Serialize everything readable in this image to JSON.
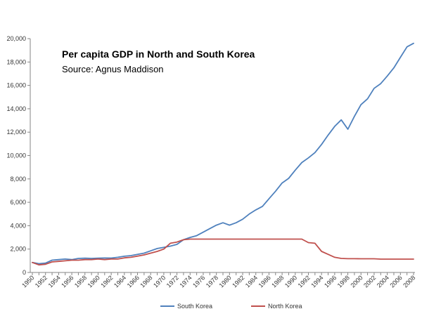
{
  "chart_data": {
    "type": "line",
    "title": "Per capita GDP in North and South Korea",
    "subtitle": "Source: Agnus Maddison",
    "xlabel": "",
    "ylabel": "",
    "xlim": [
      1950,
      2008
    ],
    "ylim": [
      0,
      20000
    ],
    "y_ticks": [
      "0",
      "2,000",
      "4,000",
      "6,000",
      "8,000",
      "10,000",
      "12,000",
      "14,000",
      "16,000",
      "18,000",
      "20,000"
    ],
    "x_ticks": [
      "1950",
      "1952",
      "1954",
      "1956",
      "1958",
      "1960",
      "1962",
      "1964",
      "1966",
      "1968",
      "1970",
      "1972",
      "1974",
      "1976",
      "1978",
      "1980",
      "1982",
      "1984",
      "1986",
      "1988",
      "1990",
      "1992",
      "1994",
      "1996",
      "1998",
      "2000",
      "2002",
      "2004",
      "2006",
      "2008"
    ],
    "grid": false,
    "legend": "bottom",
    "series": [
      {
        "name": "South Korea",
        "color": "#4F81BD",
        "x": [
          1950,
          1951,
          1952,
          1953,
          1954,
          1955,
          1956,
          1957,
          1958,
          1959,
          1960,
          1961,
          1962,
          1963,
          1964,
          1965,
          1966,
          1967,
          1968,
          1969,
          1970,
          1971,
          1972,
          1973,
          1974,
          1975,
          1976,
          1977,
          1978,
          1979,
          1980,
          1981,
          1982,
          1983,
          1984,
          1985,
          1986,
          1987,
          1988,
          1989,
          1990,
          1991,
          1992,
          1993,
          1994,
          1995,
          1996,
          1997,
          1998,
          1999,
          2000,
          2001,
          2002,
          2003,
          2004,
          2005,
          2006,
          2007,
          2008
        ],
        "values": [
          850,
          750,
          800,
          1050,
          1100,
          1150,
          1100,
          1200,
          1220,
          1200,
          1220,
          1240,
          1230,
          1300,
          1390,
          1440,
          1550,
          1650,
          1850,
          2050,
          2150,
          2250,
          2400,
          2800,
          3000,
          3150,
          3450,
          3750,
          4050,
          4250,
          4050,
          4250,
          4550,
          5000,
          5350,
          5650,
          6300,
          6950,
          7650,
          8050,
          8750,
          9400,
          9800,
          10250,
          10950,
          11750,
          12500,
          13050,
          12250,
          13350,
          14350,
          14850,
          15750,
          16150,
          16800,
          17500,
          18400,
          19300,
          19600
        ]
      },
      {
        "name": "North Korea",
        "color": "#C0504D",
        "x": [
          1950,
          1951,
          1952,
          1953,
          1954,
          1955,
          1956,
          1957,
          1958,
          1959,
          1960,
          1961,
          1962,
          1963,
          1964,
          1965,
          1966,
          1967,
          1968,
          1969,
          1970,
          1971,
          1972,
          1973,
          1974,
          1975,
          1976,
          1977,
          1978,
          1979,
          1980,
          1981,
          1982,
          1983,
          1984,
          1985,
          1986,
          1987,
          1988,
          1989,
          1990,
          1991,
          1992,
          1993,
          1994,
          1995,
          1996,
          1997,
          1998,
          1999,
          2000,
          2001,
          2002,
          2003,
          2004,
          2005,
          2006,
          2007,
          2008
        ],
        "values": [
          850,
          650,
          700,
          900,
          950,
          1000,
          1050,
          1050,
          1100,
          1100,
          1150,
          1100,
          1150,
          1150,
          1250,
          1300,
          1400,
          1500,
          1650,
          1800,
          2000,
          2500,
          2600,
          2800,
          2850,
          2850,
          2850,
          2850,
          2850,
          2850,
          2850,
          2850,
          2850,
          2850,
          2850,
          2850,
          2850,
          2850,
          2850,
          2850,
          2850,
          2850,
          2550,
          2500,
          1800,
          1550,
          1300,
          1200,
          1180,
          1180,
          1170,
          1170,
          1170,
          1140,
          1140,
          1140,
          1140,
          1140,
          1140
        ]
      }
    ]
  }
}
